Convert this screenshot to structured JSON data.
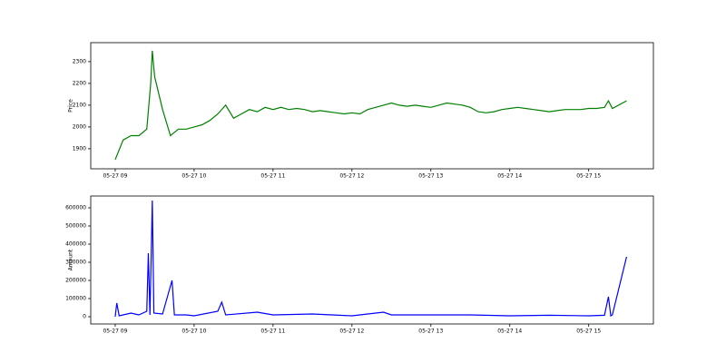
{
  "chart_data": [
    {
      "type": "line",
      "ylabel": "Price",
      "xlim": [
        8.69,
        15.82
      ],
      "xticks": [
        {
          "value": 9,
          "label": "05-27 09"
        },
        {
          "value": 10,
          "label": "05-27 10"
        },
        {
          "value": 11,
          "label": "05-27 11"
        },
        {
          "value": 12,
          "label": "05-27 12"
        },
        {
          "value": 13,
          "label": "05-27 13"
        },
        {
          "value": 14,
          "label": "05-27 14"
        },
        {
          "value": 15,
          "label": "05-27 15"
        }
      ],
      "ylim": [
        1808,
        2387
      ],
      "yticks": [
        1900,
        2000,
        2100,
        2200,
        2300
      ],
      "x": [
        9.0,
        9.1,
        9.2,
        9.3,
        9.4,
        9.45,
        9.47,
        9.5,
        9.6,
        9.7,
        9.8,
        9.9,
        10.0,
        10.1,
        10.2,
        10.3,
        10.4,
        10.5,
        10.6,
        10.7,
        10.8,
        10.9,
        11.0,
        11.1,
        11.2,
        11.3,
        11.4,
        11.5,
        11.6,
        11.7,
        11.8,
        11.9,
        12.0,
        12.1,
        12.2,
        12.3,
        12.4,
        12.5,
        12.6,
        12.7,
        12.8,
        12.9,
        13.0,
        13.1,
        13.2,
        13.3,
        13.4,
        13.5,
        13.6,
        13.7,
        13.8,
        13.9,
        14.0,
        14.1,
        14.2,
        14.3,
        14.4,
        14.5,
        14.6,
        14.7,
        14.8,
        14.9,
        15.0,
        15.1,
        15.2,
        15.25,
        15.3,
        15.48
      ],
      "series": [
        {
          "color": "#008000",
          "values": [
            1850,
            1940,
            1960,
            1960,
            1990,
            2200,
            2350,
            2230,
            2080,
            1960,
            1990,
            1990,
            2000,
            2010,
            2030,
            2060,
            2100,
            2040,
            2060,
            2080,
            2070,
            2090,
            2080,
            2090,
            2080,
            2085,
            2080,
            2070,
            2075,
            2070,
            2065,
            2060,
            2065,
            2060,
            2080,
            2090,
            2100,
            2110,
            2100,
            2095,
            2100,
            2095,
            2090,
            2100,
            2110,
            2105,
            2100,
            2090,
            2070,
            2065,
            2070,
            2080,
            2085,
            2090,
            2085,
            2080,
            2075,
            2070,
            2075,
            2080,
            2080,
            2080,
            2085,
            2085,
            2090,
            2120,
            2085,
            2120
          ]
        }
      ]
    },
    {
      "type": "line",
      "ylabel": "Amount",
      "xlim": [
        8.69,
        15.82
      ],
      "xticks": [
        {
          "value": 9,
          "label": "05-27 09"
        },
        {
          "value": 10,
          "label": "05-27 10"
        },
        {
          "value": 11,
          "label": "05-27 11"
        },
        {
          "value": 12,
          "label": "05-27 12"
        },
        {
          "value": 13,
          "label": "05-27 13"
        },
        {
          "value": 14,
          "label": "05-27 14"
        },
        {
          "value": 15,
          "label": "05-27 15"
        }
      ],
      "ylim": [
        -40000,
        665000
      ],
      "yticks": [
        0,
        100000,
        200000,
        300000,
        400000,
        500000,
        600000
      ],
      "x": [
        9.0,
        9.02,
        9.05,
        9.2,
        9.3,
        9.4,
        9.42,
        9.44,
        9.46,
        9.47,
        9.49,
        9.6,
        9.72,
        9.75,
        9.9,
        10.0,
        10.3,
        10.35,
        10.4,
        10.8,
        11.0,
        11.5,
        12.0,
        12.4,
        12.5,
        13.0,
        13.5,
        14.0,
        14.5,
        15.0,
        15.2,
        15.25,
        15.28,
        15.3,
        15.48
      ],
      "series": [
        {
          "color": "#0000ff",
          "values": [
            0,
            75000,
            5000,
            20000,
            10000,
            30000,
            350000,
            10000,
            420000,
            640000,
            20000,
            15000,
            200000,
            10000,
            10000,
            5000,
            30000,
            80000,
            10000,
            25000,
            10000,
            15000,
            5000,
            25000,
            10000,
            10000,
            10000,
            5000,
            8000,
            5000,
            8000,
            110000,
            5000,
            10000,
            330000
          ]
        }
      ]
    }
  ]
}
